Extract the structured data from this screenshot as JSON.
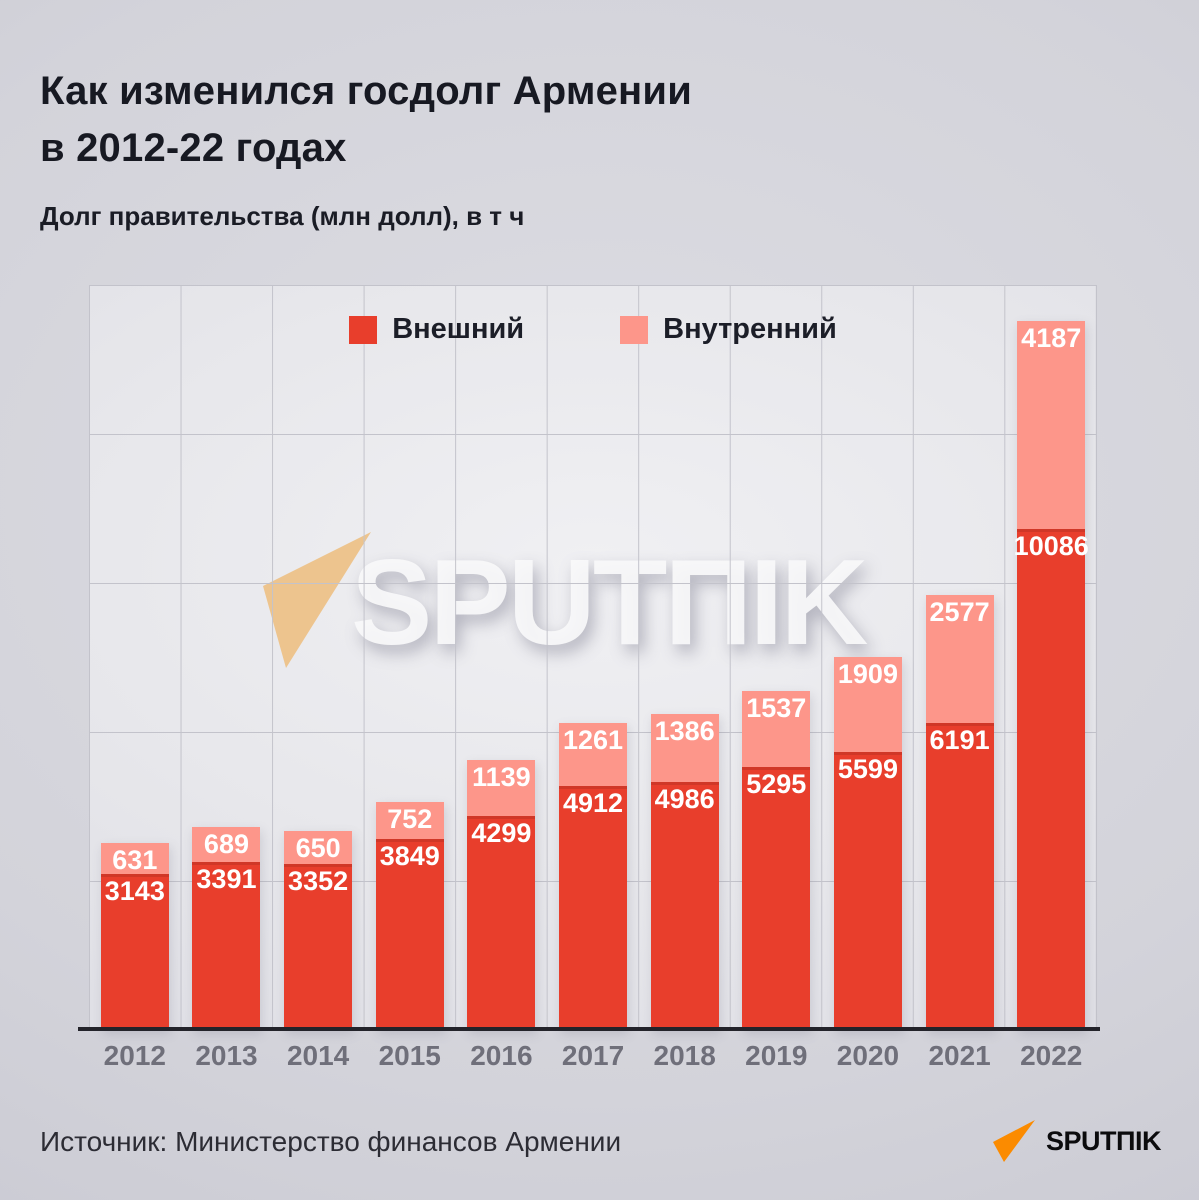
{
  "header": {
    "title": "Как изменился госдолг Армении\nв 2012-22 годах",
    "subtitle": "Долг правительства (млн долл), в т ч"
  },
  "chart_data": {
    "type": "bar",
    "stacked": true,
    "title": "Как изменился госдолг Армении в 2012-22 годах",
    "subtitle": "Долг правительства (млн долл), в т ч",
    "categories": [
      "2012",
      "2013",
      "2014",
      "2015",
      "2016",
      "2017",
      "2018",
      "2019",
      "2020",
      "2021",
      "2022"
    ],
    "series": [
      {
        "name": "Внешний",
        "color": "#e83e2c",
        "values": [
          3143,
          3391,
          3352,
          3849,
          4299,
          4912,
          4986,
          5295,
          5599,
          6191,
          10086
        ]
      },
      {
        "name": "Внутренний",
        "color": "#fd968a",
        "values": [
          631,
          689,
          650,
          752,
          1139,
          1261,
          1386,
          1537,
          1909,
          2577,
          4187
        ]
      }
    ],
    "xlabel": "",
    "ylabel": "",
    "ylim": [
      0,
      15000
    ],
    "grid": true,
    "gridline_step_y": 3000,
    "legend_position": "top-center",
    "value_labels": "inside-top-white"
  },
  "watermark": {
    "text": "SPUTΠIK",
    "triangle_color": "#edc48e"
  },
  "footer": {
    "source": "Источник: Министерство финансов Армении",
    "logo_text": "SPUTΠIK",
    "logo_color": "#fb8b00"
  }
}
